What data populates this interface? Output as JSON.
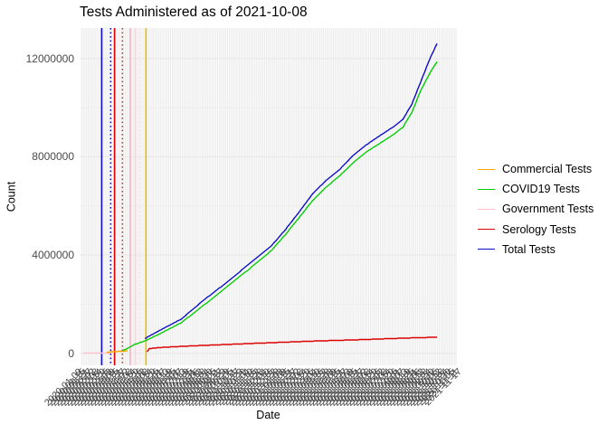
{
  "title": "Tests Administered as of 2021-10-08",
  "axes": {
    "x_title": "Date",
    "y_title": "Count",
    "y_tick_labels": [
      "0",
      "4000000",
      "8000000",
      "12000000"
    ]
  },
  "legend": {
    "position": "right",
    "items": [
      {
        "label": "Commercial Tests",
        "color": "#FFA500"
      },
      {
        "label": "COVID19 Tests",
        "color": "#00CC00"
      },
      {
        "label": "Government Tests",
        "color": "#FFC3CE"
      },
      {
        "label": "Serology Tests",
        "color": "#DC0000"
      },
      {
        "label": "Total Tests",
        "color": "#0B0BC8"
      }
    ]
  },
  "chart_data": {
    "type": "line",
    "title": "Tests Administered as of 2021-10-08",
    "xlabel": "Date",
    "ylabel": "Count",
    "x_domain": [
      "2020-01-15",
      "2021-10-08"
    ],
    "ylim": [
      0,
      13200000
    ],
    "y_major_ticks": [
      0,
      4000000,
      8000000,
      12000000
    ],
    "y_minor_ticks": [
      2000000,
      6000000,
      10000000
    ],
    "x_ticks": {
      "gridline_step_days": 3,
      "label_step_days": 6,
      "label_format": "YYYY-MM-DD",
      "label_angle_deg": 45,
      "note": "hundreds of overlapping rotated date labels, illegible in source image"
    },
    "grid": true,
    "legend_position": "right",
    "series": [
      {
        "name": "Government Tests",
        "color": "#FFC3CE",
        "points": [
          [
            "2020-01-15",
            15000
          ],
          [
            "2020-03-05",
            15000
          ]
        ]
      },
      {
        "name": "Commercial Tests",
        "color": "#FFA500",
        "points": [
          [
            "2020-02-26",
            45000
          ],
          [
            "2020-04-03",
            95000
          ]
        ]
      },
      {
        "name": "Serology Tests",
        "color": "#DC0000",
        "points": [
          [
            "2020-05-08",
            60000
          ],
          [
            "2020-05-12",
            190000
          ],
          [
            "2020-06-05",
            240000
          ],
          [
            "2020-07-08",
            280000
          ],
          [
            "2020-08-17",
            320000
          ],
          [
            "2020-09-26",
            355000
          ],
          [
            "2020-11-06",
            395000
          ],
          [
            "2020-12-16",
            430000
          ],
          [
            "2021-01-26",
            465000
          ],
          [
            "2021-03-07",
            500000
          ],
          [
            "2021-04-16",
            525000
          ],
          [
            "2021-05-27",
            555000
          ],
          [
            "2021-07-14",
            595000
          ],
          [
            "2021-08-24",
            625000
          ],
          [
            "2021-10-08",
            655000
          ]
        ]
      },
      {
        "name": "COVID19 Tests",
        "color": "#00CC00",
        "points": [
          [
            "2020-03-26",
            110000
          ],
          [
            "2020-04-05",
            220000
          ],
          [
            "2020-04-15",
            350000
          ],
          [
            "2020-04-26",
            440000
          ],
          [
            "2020-05-07",
            530000
          ],
          [
            "2020-05-28",
            760000
          ],
          [
            "2020-07-08",
            1240000
          ],
          [
            "2020-08-17",
            1950000
          ],
          [
            "2020-09-26",
            2680000
          ],
          [
            "2020-11-06",
            3420000
          ],
          [
            "2020-12-16",
            4180000
          ],
          [
            "2021-01-09",
            4800000
          ],
          [
            "2021-02-03",
            5500000
          ],
          [
            "2021-02-27",
            6200000
          ],
          [
            "2021-03-23",
            6750000
          ],
          [
            "2021-04-16",
            7200000
          ],
          [
            "2021-05-11",
            7750000
          ],
          [
            "2021-06-04",
            8200000
          ],
          [
            "2021-06-28",
            8550000
          ],
          [
            "2021-07-22",
            8900000
          ],
          [
            "2021-08-08",
            9200000
          ],
          [
            "2021-08-24",
            9800000
          ],
          [
            "2021-09-09",
            10700000
          ],
          [
            "2021-09-25",
            11400000
          ],
          [
            "2021-10-08",
            11870000
          ]
        ]
      },
      {
        "name": "Total Tests",
        "color": "#0B0BC8",
        "points": [
          [
            "2020-05-04",
            590000
          ],
          [
            "2020-05-07",
            640000
          ],
          [
            "2020-05-28",
            900000
          ],
          [
            "2020-07-08",
            1390000
          ],
          [
            "2020-08-17",
            2160000
          ],
          [
            "2020-09-26",
            2860000
          ],
          [
            "2020-11-06",
            3630000
          ],
          [
            "2020-12-16",
            4370000
          ],
          [
            "2021-01-09",
            5000000
          ],
          [
            "2021-02-03",
            5730000
          ],
          [
            "2021-02-27",
            6470000
          ],
          [
            "2021-03-23",
            7020000
          ],
          [
            "2021-04-16",
            7460000
          ],
          [
            "2021-05-11",
            8050000
          ],
          [
            "2021-06-04",
            8490000
          ],
          [
            "2021-06-28",
            8860000
          ],
          [
            "2021-07-22",
            9220000
          ],
          [
            "2021-08-08",
            9520000
          ],
          [
            "2021-08-24",
            10140000
          ],
          [
            "2021-09-09",
            11060000
          ],
          [
            "2021-09-25",
            11980000
          ],
          [
            "2021-10-08",
            12610000
          ]
        ]
      }
    ],
    "event_vlines": [
      {
        "date": "2020-02-17",
        "color": "#0B0BC8",
        "style": "solid"
      },
      {
        "date": "2020-03-04",
        "color": "#0B0BC8",
        "style": "dotted"
      },
      {
        "date": "2020-03-11",
        "color": "#DC0000",
        "style": "solid"
      },
      {
        "date": "2020-03-25",
        "color": "#C23A20",
        "style": "dotted"
      },
      {
        "date": "2020-04-08",
        "color": "#FFADC2",
        "style": "solid"
      },
      {
        "date": "2020-04-17",
        "color": "#FFD0DC",
        "style": "solid"
      },
      {
        "date": "2020-04-25",
        "color": "#FFDCE6",
        "style": "dotted"
      },
      {
        "date": "2020-05-06",
        "color": "#EFC100",
        "style": "solid"
      }
    ]
  }
}
